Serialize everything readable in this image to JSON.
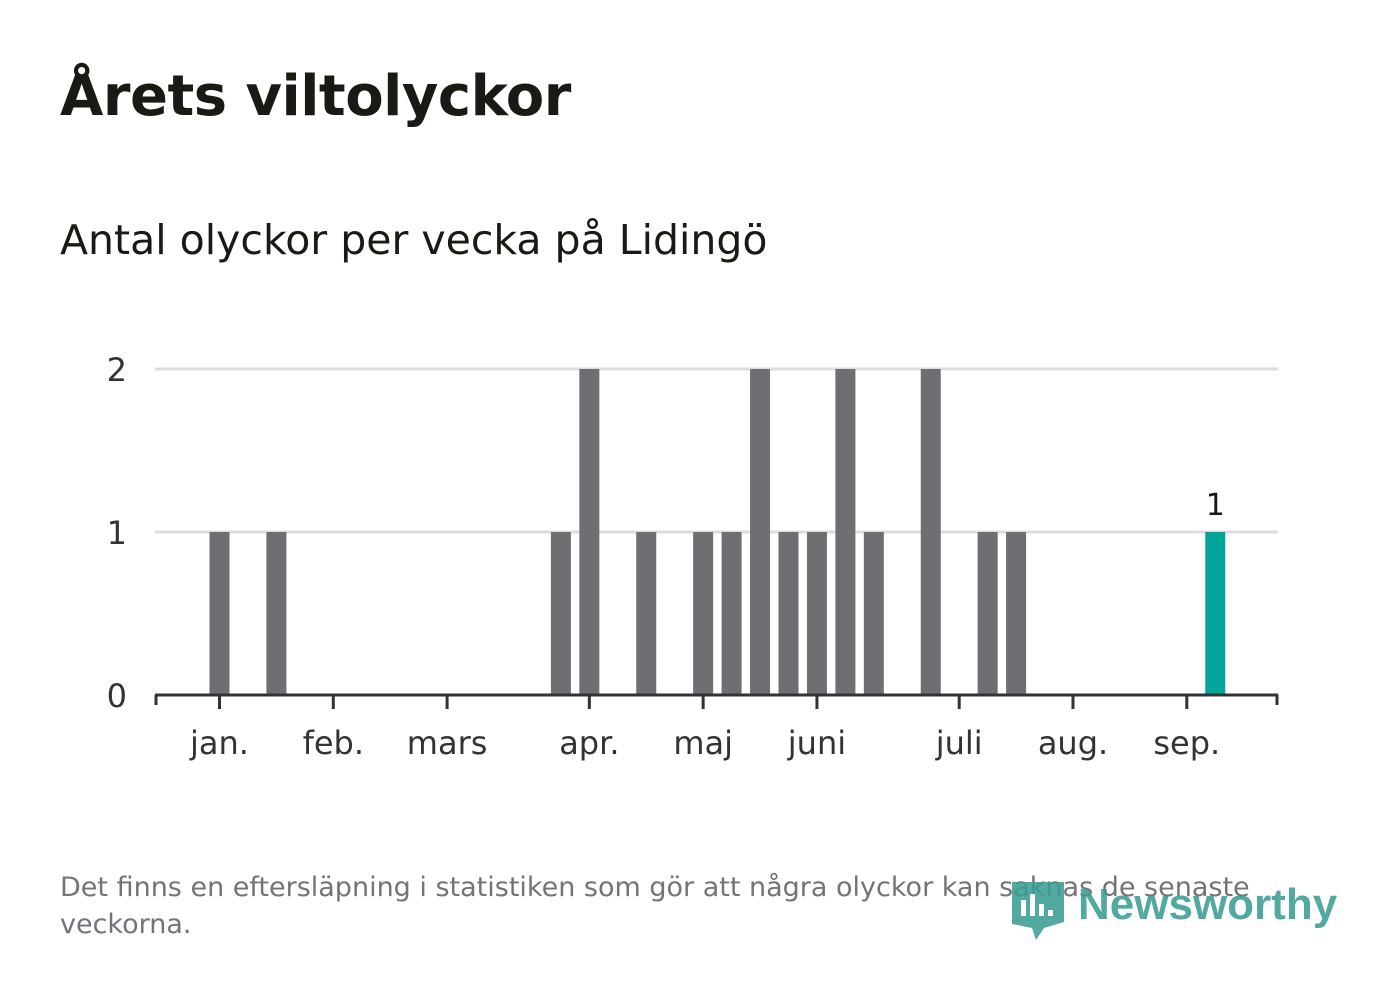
{
  "header": {
    "title": "Årets viltolyckor",
    "subtitle": "Antal olyckor per vecka på Lidingö"
  },
  "footnote": "Det finns en eftersläpning i statistiken som gör att några olyckor kan saknas de senaste veckorna.",
  "brand": {
    "name": "Newsworthy",
    "icon": "newsworthy-bar-chart-icon",
    "color": "#3a9e93"
  },
  "colors": {
    "bar": "#6f6e73",
    "highlight": "#00a59a",
    "grid": "#dddddd",
    "axis": "#333333",
    "text": "#1a1a14",
    "muted": "#75737a"
  },
  "chart_data": {
    "type": "bar",
    "title": "Antal olyckor per vecka på Lidingö",
    "xlabel": "",
    "ylabel": "",
    "ylim": [
      0,
      2
    ],
    "yticks": [
      0,
      1,
      2
    ],
    "grid": true,
    "legend": "none",
    "x_unit": "vecka",
    "month_ticks": [
      {
        "label": "jan.",
        "week": 1
      },
      {
        "label": "feb.",
        "week": 5
      },
      {
        "label": "mars",
        "week": 9
      },
      {
        "label": "apr.",
        "week": 14
      },
      {
        "label": "maj",
        "week": 18
      },
      {
        "label": "juni",
        "week": 22
      },
      {
        "label": "juli",
        "week": 27
      },
      {
        "label": "aug.",
        "week": 31
      },
      {
        "label": "sep.",
        "week": 35
      }
    ],
    "weeks": [
      1,
      3,
      13,
      14,
      16,
      18,
      19,
      20,
      21,
      22,
      23,
      24,
      26,
      28,
      29,
      36
    ],
    "values": [
      1,
      1,
      1,
      2,
      1,
      1,
      1,
      2,
      1,
      1,
      2,
      1,
      2,
      1,
      1,
      1
    ],
    "highlight_week": 36,
    "data_labels": [
      {
        "week": 36,
        "text": "1"
      }
    ]
  }
}
